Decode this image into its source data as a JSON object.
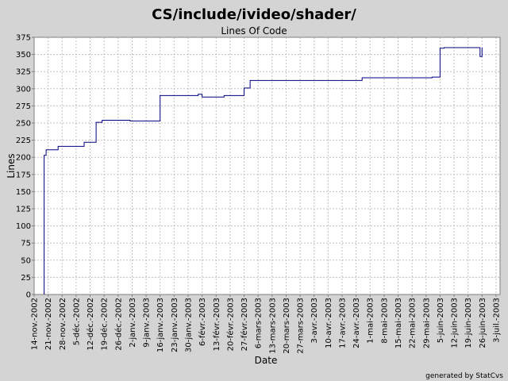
{
  "chart_data": {
    "type": "line",
    "title": "CS/include/ivideo/shader/",
    "subtitle": "Lines Of Code",
    "xlabel": "Date",
    "ylabel": "Lines",
    "ylim": [
      0,
      375
    ],
    "yticks": [
      0,
      25,
      50,
      75,
      100,
      125,
      150,
      175,
      200,
      225,
      250,
      275,
      300,
      325,
      350,
      375
    ],
    "xlim": [
      "2002-11-14",
      "2003-07-05"
    ],
    "xticks": [
      {
        "date": "2002-11-14",
        "label": "14-nov.-2002"
      },
      {
        "date": "2002-11-21",
        "label": "21-nov.-2002"
      },
      {
        "date": "2002-11-28",
        "label": "28-nov.-2002"
      },
      {
        "date": "2002-12-05",
        "label": "5-déc.-2002"
      },
      {
        "date": "2002-12-12",
        "label": "12-déc.-2002"
      },
      {
        "date": "2002-12-19",
        "label": "19-déc.-2002"
      },
      {
        "date": "2002-12-26",
        "label": "26-déc.-2002"
      },
      {
        "date": "2003-01-02",
        "label": "2-janv.-2003"
      },
      {
        "date": "2003-01-09",
        "label": "9-janv.-2003"
      },
      {
        "date": "2003-01-16",
        "label": "16-janv.-2003"
      },
      {
        "date": "2003-01-23",
        "label": "23-janv.-2003"
      },
      {
        "date": "2003-01-30",
        "label": "30-janv.-2003"
      },
      {
        "date": "2003-02-06",
        "label": "6-févr.-2003"
      },
      {
        "date": "2003-02-13",
        "label": "13-févr.-2003"
      },
      {
        "date": "2003-02-20",
        "label": "20-févr.-2003"
      },
      {
        "date": "2003-02-27",
        "label": "27-févr.-2003"
      },
      {
        "date": "2003-03-06",
        "label": "6-mars-2003"
      },
      {
        "date": "2003-03-13",
        "label": "13-mars-2003"
      },
      {
        "date": "2003-03-20",
        "label": "20-mars-2003"
      },
      {
        "date": "2003-03-27",
        "label": "27-mars-2003"
      },
      {
        "date": "2003-04-03",
        "label": "3-avr.-2003"
      },
      {
        "date": "2003-04-10",
        "label": "10-avr.-2003"
      },
      {
        "date": "2003-04-17",
        "label": "17-avr.-2003"
      },
      {
        "date": "2003-04-24",
        "label": "24-avr.-2003"
      },
      {
        "date": "2003-05-01",
        "label": "1-mai-2003"
      },
      {
        "date": "2003-05-08",
        "label": "8-mai-2003"
      },
      {
        "date": "2003-05-15",
        "label": "15-mai-2003"
      },
      {
        "date": "2003-05-22",
        "label": "22-mai-2003"
      },
      {
        "date": "2003-05-29",
        "label": "29-mai-2003"
      },
      {
        "date": "2003-06-05",
        "label": "5-juin-2003"
      },
      {
        "date": "2003-06-12",
        "label": "12-juin-2003"
      },
      {
        "date": "2003-06-19",
        "label": "19-juin-2003"
      },
      {
        "date": "2003-06-26",
        "label": "26-juin-2003"
      },
      {
        "date": "2003-07-03",
        "label": "3-juil.-2003"
      }
    ],
    "grid": true,
    "line_color": "#000080",
    "series": [
      {
        "points": [
          [
            "2002-11-19",
            0
          ],
          [
            "2002-11-19",
            203
          ],
          [
            "2002-11-20",
            211
          ],
          [
            "2002-11-26",
            216
          ],
          [
            "2002-12-09",
            222
          ],
          [
            "2002-12-15",
            251
          ],
          [
            "2002-12-18",
            254
          ],
          [
            "2003-01-01",
            253
          ],
          [
            "2003-01-16",
            290
          ],
          [
            "2003-02-04",
            292
          ],
          [
            "2003-02-06",
            288
          ],
          [
            "2003-02-17",
            290
          ],
          [
            "2003-02-27",
            301
          ],
          [
            "2003-03-02",
            312
          ],
          [
            "2003-04-27",
            316
          ],
          [
            "2003-06-01",
            317
          ],
          [
            "2003-06-05",
            359
          ],
          [
            "2003-06-07",
            360
          ],
          [
            "2003-06-25",
            347
          ],
          [
            "2003-06-26",
            360
          ]
        ]
      }
    ]
  },
  "footer": "generated by StatCvs"
}
